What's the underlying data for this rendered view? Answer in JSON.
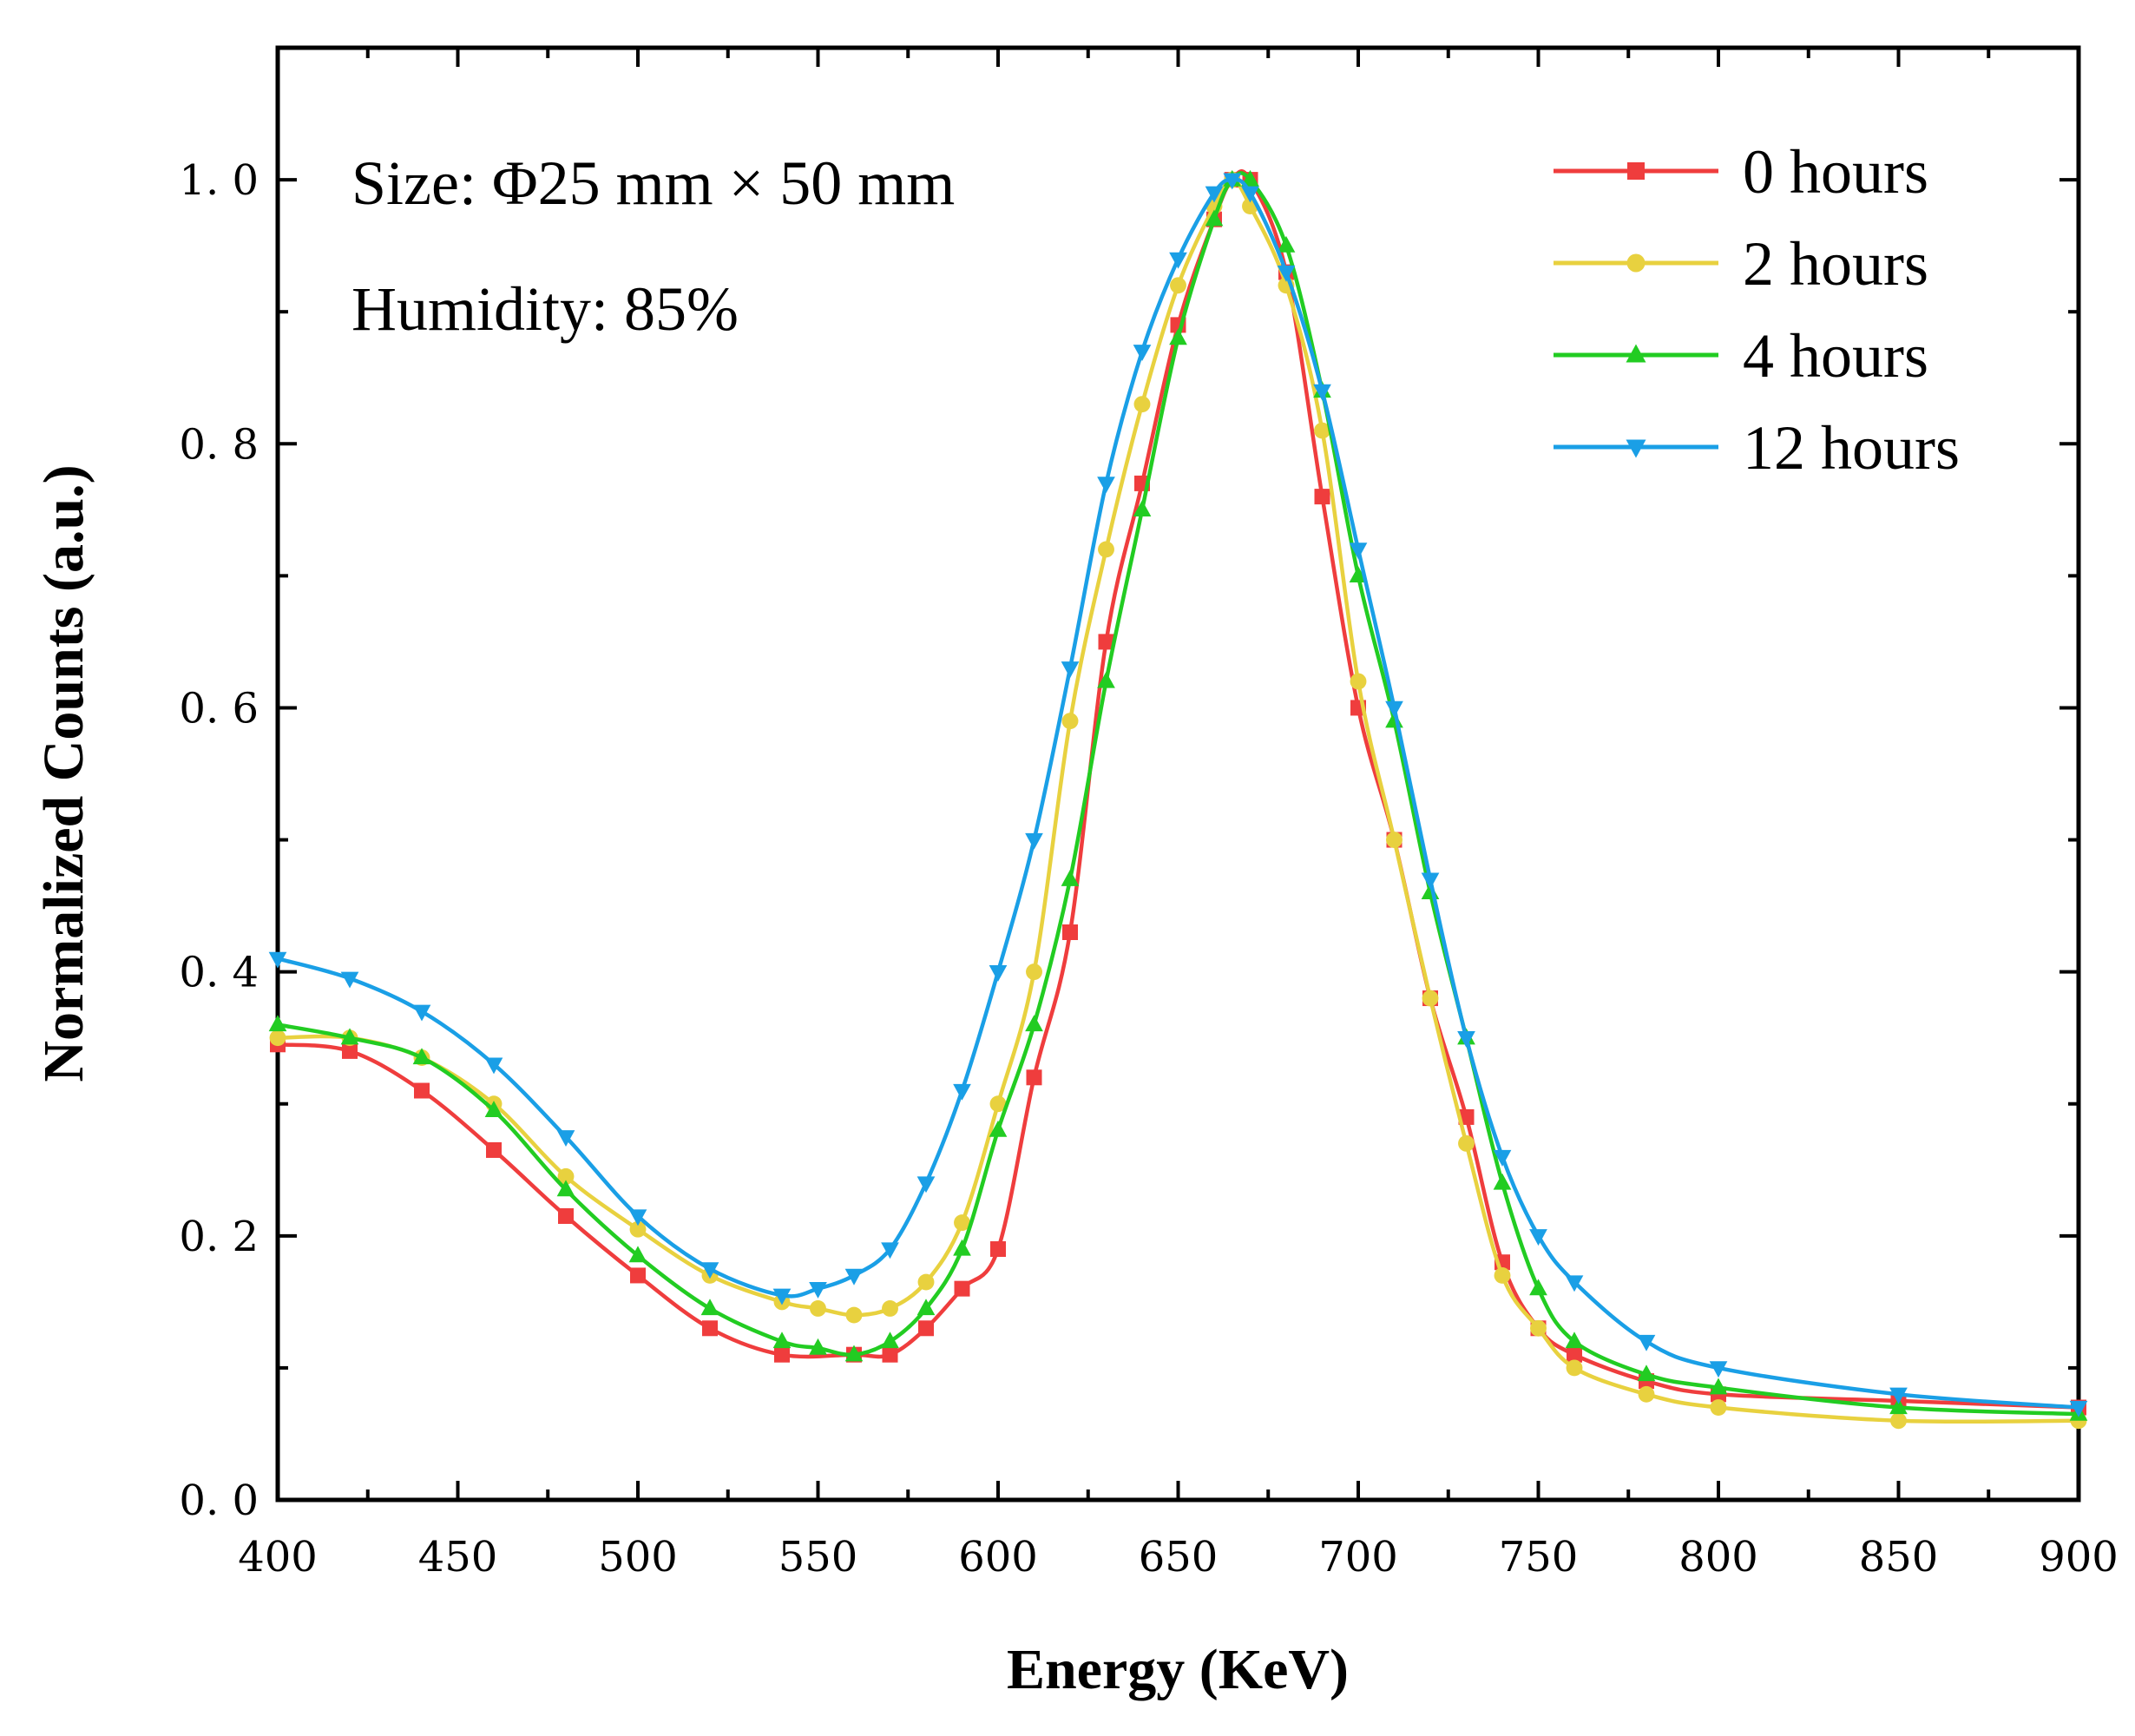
{
  "chart_data": {
    "type": "line",
    "xlabel": "Energy (KeV)",
    "ylabel": "Normalized Counts (a.u.)",
    "xlim": [
      400,
      900
    ],
    "ylim": [
      0,
      1.1
    ],
    "xticks": [
      "400",
      "450",
      "500",
      "550",
      "600",
      "650",
      "700",
      "750",
      "800",
      "850",
      "900"
    ],
    "yticks": [
      "0. 0",
      "0. 2",
      "0. 4",
      "0. 6",
      "0. 8",
      "1. 0"
    ],
    "annotations": [
      "Size: Φ25 mm × 50 mm",
      "Humidity: 85%"
    ],
    "legend_position": "top-right",
    "grid": false,
    "series": [
      {
        "name": "0 hours",
        "color": "#ef3d3d",
        "marker": "square",
        "x": [
          400,
          420,
          440,
          460,
          480,
          500,
          520,
          540,
          560,
          570,
          580,
          590,
          600,
          610,
          620,
          630,
          640,
          650,
          660,
          665,
          670,
          680,
          690,
          700,
          710,
          720,
          730,
          740,
          750,
          760,
          780,
          800,
          850,
          900
        ],
        "y": [
          0.345,
          0.34,
          0.31,
          0.265,
          0.215,
          0.17,
          0.13,
          0.11,
          0.11,
          0.11,
          0.13,
          0.16,
          0.19,
          0.32,
          0.43,
          0.65,
          0.77,
          0.89,
          0.97,
          1.0,
          1.0,
          0.93,
          0.76,
          0.6,
          0.5,
          0.38,
          0.29,
          0.18,
          0.13,
          0.11,
          0.09,
          0.08,
          0.075,
          0.07
        ]
      },
      {
        "name": "2 hours",
        "color": "#e8d13f",
        "marker": "circle",
        "x": [
          400,
          420,
          440,
          460,
          480,
          500,
          520,
          540,
          550,
          560,
          570,
          580,
          590,
          600,
          610,
          620,
          630,
          640,
          650,
          660,
          665,
          670,
          680,
          690,
          700,
          710,
          720,
          730,
          740,
          750,
          760,
          780,
          800,
          850,
          900
        ],
        "y": [
          0.35,
          0.35,
          0.335,
          0.3,
          0.245,
          0.205,
          0.17,
          0.15,
          0.145,
          0.14,
          0.145,
          0.165,
          0.21,
          0.3,
          0.4,
          0.59,
          0.72,
          0.83,
          0.92,
          0.98,
          1.0,
          0.98,
          0.92,
          0.81,
          0.62,
          0.5,
          0.38,
          0.27,
          0.17,
          0.13,
          0.1,
          0.08,
          0.07,
          0.06,
          0.06
        ]
      },
      {
        "name": "4 hours",
        "color": "#22cc22",
        "marker": "triangle-up",
        "x": [
          400,
          420,
          440,
          460,
          480,
          500,
          520,
          540,
          550,
          560,
          570,
          580,
          590,
          600,
          610,
          620,
          630,
          640,
          650,
          660,
          665,
          670,
          680,
          690,
          700,
          710,
          720,
          730,
          740,
          750,
          760,
          780,
          800,
          850,
          900
        ],
        "y": [
          0.36,
          0.35,
          0.335,
          0.295,
          0.235,
          0.185,
          0.145,
          0.12,
          0.115,
          0.11,
          0.12,
          0.145,
          0.19,
          0.28,
          0.36,
          0.47,
          0.62,
          0.75,
          0.88,
          0.97,
          1.0,
          1.0,
          0.95,
          0.84,
          0.7,
          0.59,
          0.46,
          0.35,
          0.24,
          0.16,
          0.12,
          0.095,
          0.085,
          0.07,
          0.065
        ]
      },
      {
        "name": "12 hours",
        "color": "#1a9fe6",
        "marker": "triangle-down",
        "x": [
          400,
          420,
          440,
          460,
          480,
          500,
          520,
          540,
          550,
          560,
          570,
          580,
          590,
          600,
          610,
          620,
          630,
          640,
          650,
          660,
          665,
          670,
          680,
          690,
          700,
          710,
          720,
          730,
          740,
          750,
          760,
          780,
          800,
          850,
          900
        ],
        "y": [
          0.41,
          0.395,
          0.37,
          0.33,
          0.275,
          0.215,
          0.175,
          0.155,
          0.16,
          0.17,
          0.19,
          0.24,
          0.31,
          0.4,
          0.5,
          0.63,
          0.77,
          0.87,
          0.94,
          0.99,
          1.0,
          0.99,
          0.93,
          0.84,
          0.72,
          0.6,
          0.47,
          0.35,
          0.26,
          0.2,
          0.165,
          0.12,
          0.1,
          0.08,
          0.07
        ]
      }
    ]
  }
}
